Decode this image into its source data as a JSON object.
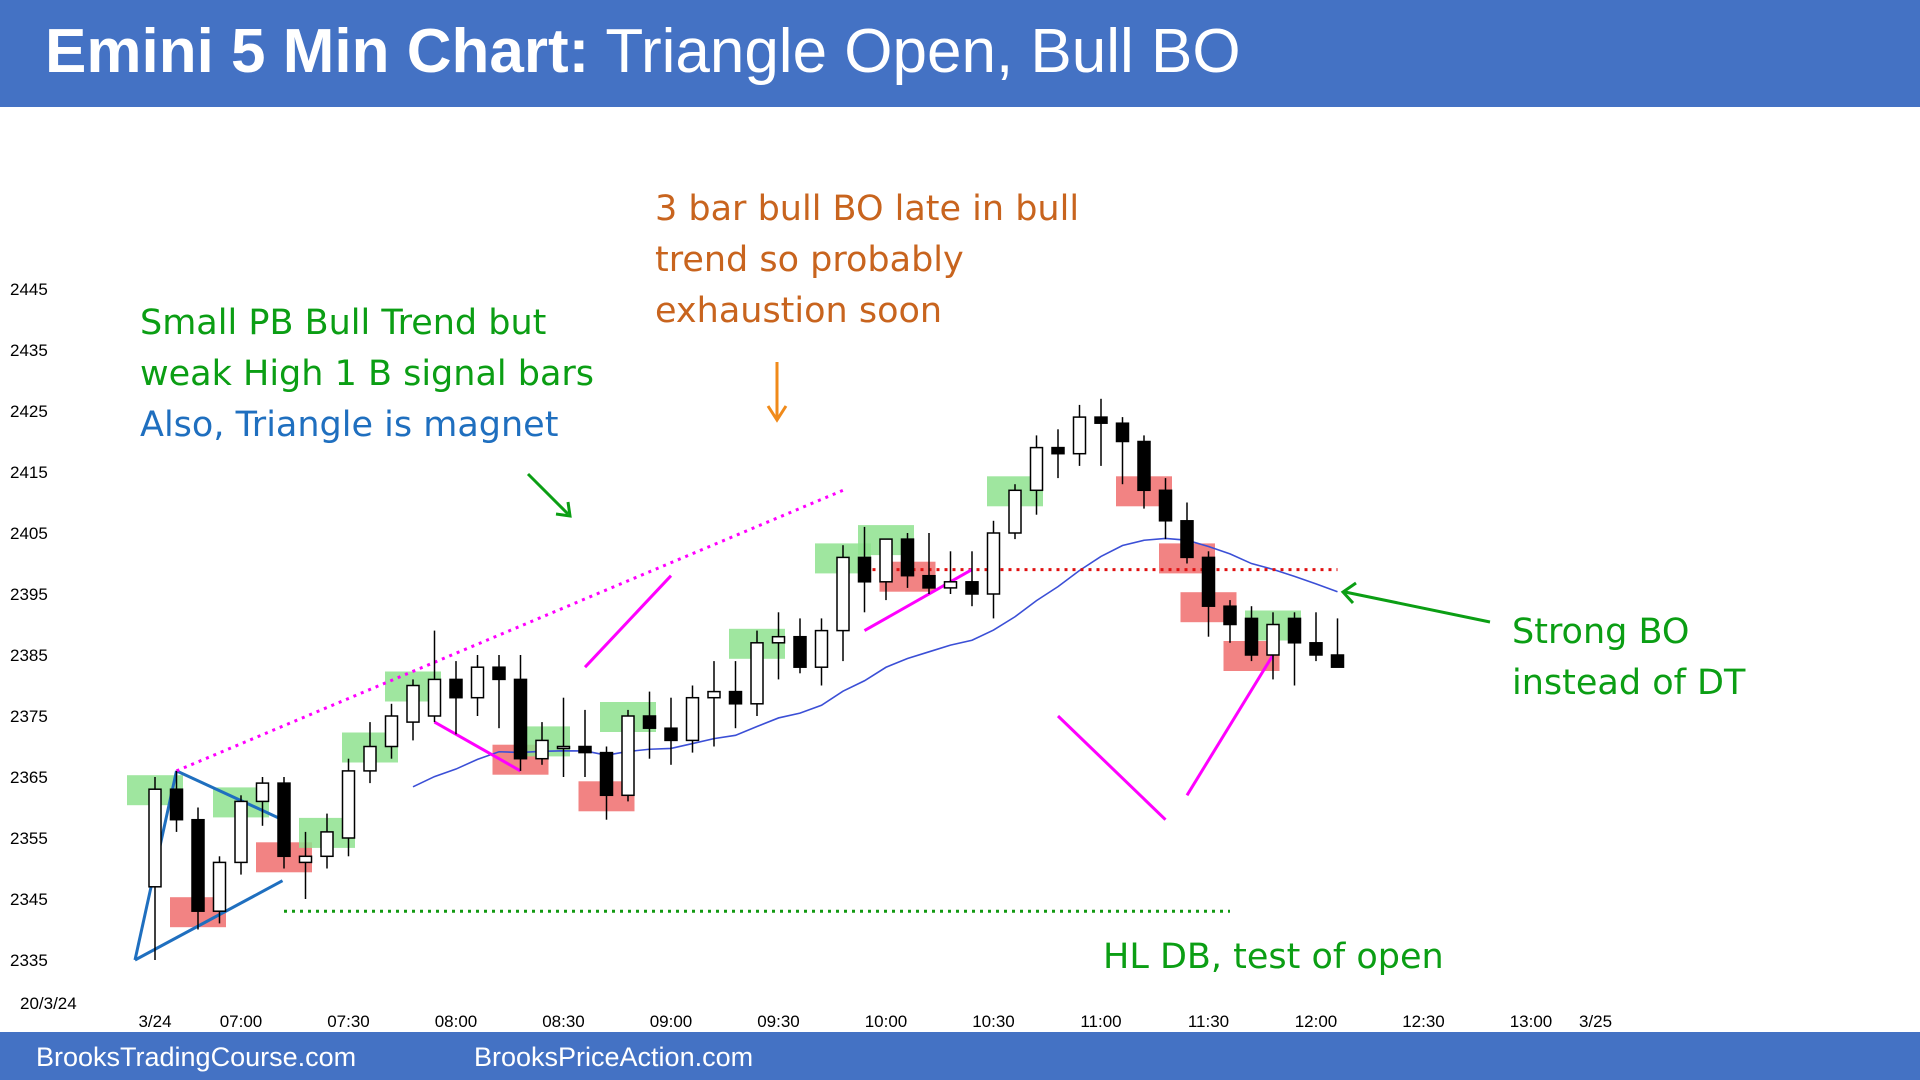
{
  "header": {
    "title_bold": "Emini 5 Min Chart:",
    "title_rest": " Triangle Open, Bull BO"
  },
  "footer": {
    "left": "BrooksTradingCourse.com",
    "right": "BrooksPriceAction.com"
  },
  "colors": {
    "header_bg": "#4472c4",
    "bull_signal_box": "#8ee28e",
    "bear_signal_box": "#f06d6d",
    "ema": "#3b4fd6",
    "magenta": "#ff00ff",
    "triangle": "#1f6fbf",
    "green_text": "#0b9e14",
    "orange_text": "#c8641e",
    "blue_text": "#1f6fbf",
    "red_dotted": "#e01010",
    "green_dotted": "#119911"
  },
  "annotations": {
    "top_note": [
      "3 bar bull BO late in bull",
      "trend so probably",
      "exhaustion soon"
    ],
    "left_note_green": [
      "Small PB Bull Trend but",
      "weak High 1 B signal bars"
    ],
    "left_note_blue": "Also, Triangle is magnet",
    "right_note": [
      "Strong BO",
      "instead of DT"
    ],
    "bottom_note": "HL DB, test of open"
  },
  "chart_data": {
    "type": "candlestick",
    "title": "Emini 5 Min Chart: Triangle Open, Bull BO",
    "date_label": "20/3/24",
    "y_ticks": [
      2335,
      2345,
      2355,
      2365,
      2375,
      2385,
      2395,
      2405,
      2415,
      2425,
      2435,
      2445
    ],
    "ylim": [
      2332,
      2450
    ],
    "x_ticks": [
      {
        "label": "3/24",
        "bar": 0
      },
      {
        "label": "07:00",
        "bar": 4
      },
      {
        "label": "07:30",
        "bar": 9
      },
      {
        "label": "08:00",
        "bar": 14
      },
      {
        "label": "08:30",
        "bar": 19
      },
      {
        "label": "09:00",
        "bar": 24
      },
      {
        "label": "09:30",
        "bar": 29
      },
      {
        "label": "10:00",
        "bar": 34
      },
      {
        "label": "10:30",
        "bar": 39
      },
      {
        "label": "11:00",
        "bar": 44
      },
      {
        "label": "11:30",
        "bar": 49
      },
      {
        "label": "12:00",
        "bar": 54
      },
      {
        "label": "12:30",
        "bar": 59
      },
      {
        "label": "13:00",
        "bar": 64
      },
      {
        "label": "3/25",
        "bar": 67
      }
    ],
    "bars": [
      {
        "o": 2347,
        "h": 2365,
        "l": 2335,
        "c": 2363
      },
      {
        "o": 2363,
        "h": 2366,
        "l": 2356,
        "c": 2358
      },
      {
        "o": 2358,
        "h": 2360,
        "l": 2340,
        "c": 2343
      },
      {
        "o": 2343,
        "h": 2352,
        "l": 2341,
        "c": 2351
      },
      {
        "o": 2351,
        "h": 2362,
        "l": 2349,
        "c": 2361
      },
      {
        "o": 2361,
        "h": 2365,
        "l": 2357,
        "c": 2364
      },
      {
        "o": 2364,
        "h": 2365,
        "l": 2350,
        "c": 2352
      },
      {
        "o": 2351,
        "h": 2356,
        "l": 2345,
        "c": 2352
      },
      {
        "o": 2352,
        "h": 2359,
        "l": 2350,
        "c": 2356
      },
      {
        "o": 2355,
        "h": 2368,
        "l": 2352,
        "c": 2366
      },
      {
        "o": 2366,
        "h": 2374,
        "l": 2364,
        "c": 2370
      },
      {
        "o": 2370,
        "h": 2377,
        "l": 2368,
        "c": 2375
      },
      {
        "o": 2374,
        "h": 2381,
        "l": 2371,
        "c": 2380
      },
      {
        "o": 2375,
        "h": 2389,
        "l": 2374,
        "c": 2381
      },
      {
        "o": 2381,
        "h": 2384,
        "l": 2372,
        "c": 2378
      },
      {
        "o": 2378,
        "h": 2385,
        "l": 2375,
        "c": 2383
      },
      {
        "o": 2383,
        "h": 2385,
        "l": 2373,
        "c": 2381
      },
      {
        "o": 2381,
        "h": 2385,
        "l": 2366,
        "c": 2368
      },
      {
        "o": 2368,
        "h": 2374,
        "l": 2367,
        "c": 2371
      },
      {
        "o": 2370,
        "h": 2378,
        "l": 2365,
        "c": 2370
      },
      {
        "o": 2370,
        "h": 2376,
        "l": 2365,
        "c": 2369
      },
      {
        "o": 2369,
        "h": 2370,
        "l": 2358,
        "c": 2362
      },
      {
        "o": 2362,
        "h": 2376,
        "l": 2361,
        "c": 2375
      },
      {
        "o": 2375,
        "h": 2379,
        "l": 2368,
        "c": 2373
      },
      {
        "o": 2373,
        "h": 2378,
        "l": 2367,
        "c": 2371
      },
      {
        "o": 2371,
        "h": 2380,
        "l": 2369,
        "c": 2378
      },
      {
        "o": 2378,
        "h": 2384,
        "l": 2370,
        "c": 2379
      },
      {
        "o": 2379,
        "h": 2384,
        "l": 2373,
        "c": 2377
      },
      {
        "o": 2377,
        "h": 2389,
        "l": 2375,
        "c": 2387
      },
      {
        "o": 2387,
        "h": 2392,
        "l": 2381,
        "c": 2388
      },
      {
        "o": 2388,
        "h": 2391,
        "l": 2382,
        "c": 2383
      },
      {
        "o": 2383,
        "h": 2391,
        "l": 2380,
        "c": 2389
      },
      {
        "o": 2389,
        "h": 2403,
        "l": 2384,
        "c": 2401
      },
      {
        "o": 2401,
        "h": 2406,
        "l": 2392,
        "c": 2397
      },
      {
        "o": 2397,
        "h": 2404,
        "l": 2394,
        "c": 2404
      },
      {
        "o": 2404,
        "h": 2405,
        "l": 2396,
        "c": 2398
      },
      {
        "o": 2398,
        "h": 2405,
        "l": 2395,
        "c": 2396
      },
      {
        "o": 2396,
        "h": 2402,
        "l": 2395,
        "c": 2397
      },
      {
        "o": 2397,
        "h": 2402,
        "l": 2393,
        "c": 2395
      },
      {
        "o": 2395,
        "h": 2407,
        "l": 2391,
        "c": 2405
      },
      {
        "o": 2405,
        "h": 2413,
        "l": 2404,
        "c": 2412
      },
      {
        "o": 2412,
        "h": 2421,
        "l": 2408,
        "c": 2419
      },
      {
        "o": 2419,
        "h": 2422,
        "l": 2414,
        "c": 2418
      },
      {
        "o": 2418,
        "h": 2426,
        "l": 2416,
        "c": 2424
      },
      {
        "o": 2424,
        "h": 2427,
        "l": 2416,
        "c": 2423
      },
      {
        "o": 2423,
        "h": 2424,
        "l": 2413,
        "c": 2420
      },
      {
        "o": 2420,
        "h": 2421,
        "l": 2409,
        "c": 2412
      },
      {
        "o": 2412,
        "h": 2414,
        "l": 2404,
        "c": 2407
      },
      {
        "o": 2407,
        "h": 2410,
        "l": 2400,
        "c": 2401
      },
      {
        "o": 2401,
        "h": 2402,
        "l": 2388,
        "c": 2393
      },
      {
        "o": 2393,
        "h": 2394,
        "l": 2387,
        "c": 2390
      },
      {
        "o": 2391,
        "h": 2393,
        "l": 2384,
        "c": 2385
      },
      {
        "o": 2385,
        "h": 2392,
        "l": 2381,
        "c": 2390
      },
      {
        "o": 2391,
        "h": 2392,
        "l": 2380,
        "c": 2387
      },
      {
        "o": 2387,
        "h": 2392,
        "l": 2384,
        "c": 2385
      },
      {
        "o": 2385,
        "h": 2391,
        "l": 2384,
        "c": 2383
      }
    ],
    "ema_label": "EMA"
  }
}
